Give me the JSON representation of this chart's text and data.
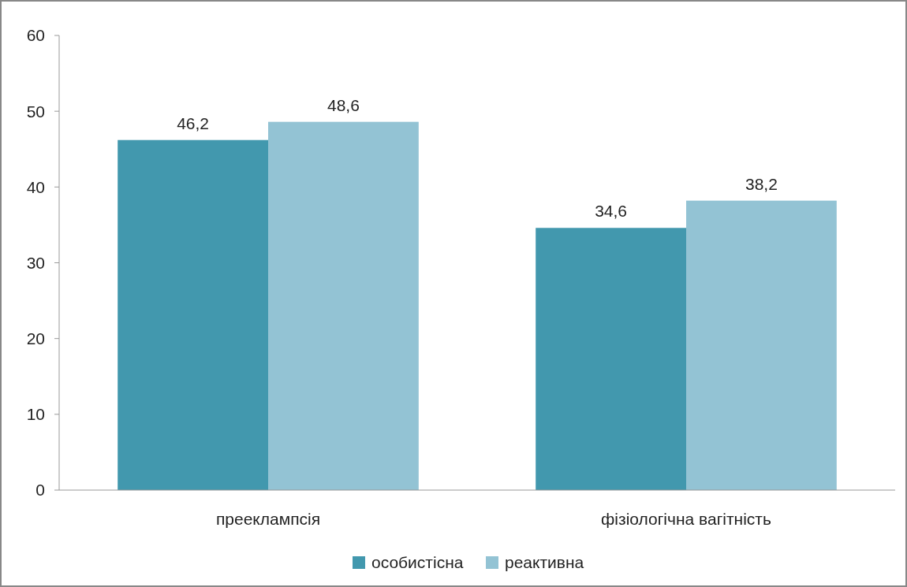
{
  "chart_data": {
    "type": "bar",
    "categories": [
      "прееклампсія",
      "фізіологічна вагітність"
    ],
    "series": [
      {
        "name": "особистісна",
        "color": "#4298ae",
        "values": [
          46.2,
          34.6
        ],
        "value_labels": [
          "46,2",
          "34,6"
        ]
      },
      {
        "name": "реактивна",
        "color": "#93c3d4",
        "values": [
          48.6,
          38.2
        ],
        "value_labels": [
          "48,6",
          "38,2"
        ]
      }
    ],
    "ylim": [
      0,
      60
    ],
    "yticks": [
      0,
      10,
      20,
      30,
      40,
      50,
      60
    ],
    "grid": false,
    "legend": "bottom"
  }
}
